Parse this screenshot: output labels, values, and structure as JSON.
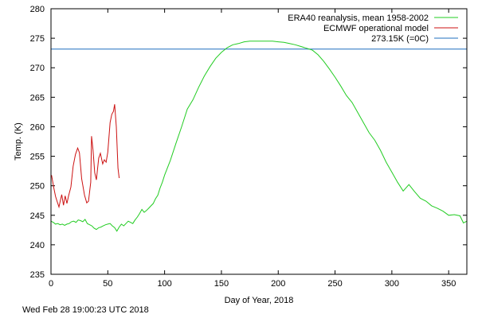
{
  "chart_data": {
    "type": "line",
    "title": "",
    "xlabel": "Day of Year, 2018",
    "ylabel": "Temp. (K)",
    "xlim": [
      0,
      366
    ],
    "ylim": [
      235,
      280
    ],
    "xticks": [
      0,
      50,
      100,
      150,
      200,
      250,
      300,
      350
    ],
    "yticks": [
      235,
      240,
      245,
      250,
      255,
      260,
      265,
      270,
      275,
      280
    ],
    "grid": false,
    "legend_position": "top-right",
    "series": [
      {
        "name": "ERA40 reanalysis, mean 1958-2002",
        "color": "#22cc22",
        "x": [
          0,
          2,
          4,
          6,
          8,
          10,
          12,
          14,
          16,
          18,
          20,
          22,
          24,
          26,
          28,
          30,
          32,
          34,
          36,
          38,
          40,
          42,
          44,
          46,
          48,
          50,
          52,
          54,
          56,
          58,
          60,
          62,
          64,
          66,
          68,
          70,
          72,
          74,
          76,
          78,
          80,
          82,
          84,
          86,
          88,
          90,
          92,
          94,
          96,
          98,
          100,
          105,
          110,
          115,
          120,
          125,
          130,
          135,
          140,
          145,
          150,
          155,
          160,
          165,
          170,
          175,
          180,
          185,
          190,
          195,
          200,
          205,
          210,
          215,
          220,
          225,
          230,
          235,
          240,
          245,
          250,
          255,
          260,
          265,
          270,
          275,
          280,
          285,
          290,
          295,
          300,
          305,
          310,
          315,
          320,
          325,
          330,
          335,
          340,
          345,
          350,
          355,
          360,
          363,
          366
        ],
        "y": [
          244.0,
          243.8,
          243.5,
          243.6,
          243.4,
          243.5,
          243.3,
          243.5,
          243.6,
          243.9,
          244.0,
          243.8,
          244.2,
          244.1,
          243.9,
          244.3,
          243.6,
          243.4,
          243.2,
          242.8,
          242.6,
          242.9,
          243.0,
          243.2,
          243.4,
          243.5,
          243.6,
          243.2,
          242.9,
          242.3,
          243.0,
          243.5,
          243.2,
          243.6,
          244.0,
          243.8,
          243.6,
          244.2,
          244.7,
          245.3,
          246.0,
          245.5,
          245.8,
          246.2,
          246.6,
          247.0,
          247.8,
          248.4,
          249.6,
          250.6,
          251.8,
          254.3,
          257.2,
          260.0,
          263.0,
          264.6,
          266.7,
          268.6,
          270.2,
          271.6,
          272.6,
          273.4,
          273.9,
          274.1,
          274.4,
          274.5,
          274.5,
          274.5,
          274.5,
          274.5,
          274.4,
          274.3,
          274.1,
          273.9,
          273.6,
          273.3,
          273.0,
          272.2,
          271.1,
          269.8,
          268.4,
          266.9,
          265.3,
          264.1,
          262.4,
          260.7,
          259.0,
          257.7,
          256.0,
          254.0,
          252.3,
          250.6,
          249.1,
          250.2,
          249.0,
          247.9,
          247.4,
          246.6,
          246.2,
          245.7,
          245.0,
          245.1,
          244.9,
          243.7,
          244.0
        ]
      },
      {
        "name": "ECMWF operational model",
        "color": "#cc1111",
        "x": [
          0.5,
          2.5,
          4,
          5.5,
          7,
          8.5,
          9.5,
          11,
          12.5,
          14,
          15.5,
          17.5,
          19.5,
          21.5,
          23.5,
          25,
          27,
          29.5,
          31.5,
          33,
          35,
          35.7,
          37,
          38.5,
          40,
          42,
          43.5,
          45.5,
          47,
          48.5,
          50,
          52,
          53.5,
          55,
          56,
          57.5,
          59,
          60
        ],
        "y": [
          251.8,
          249.6,
          248.2,
          247.3,
          246.4,
          247.7,
          248.5,
          246.7,
          248.3,
          247.0,
          248.3,
          249.8,
          253.3,
          255.3,
          256.4,
          255.6,
          251.2,
          248.4,
          247.1,
          247.4,
          250.6,
          258.4,
          256.0,
          252.2,
          251.0,
          254.7,
          255.5,
          253.7,
          254.4,
          254.0,
          255.7,
          260.7,
          262.1,
          262.6,
          263.8,
          260.0,
          253.0,
          251.3
        ]
      },
      {
        "name": "273.15K (=0C)",
        "color": "#1f6fbf",
        "x": [
          0,
          366
        ],
        "y": [
          273.15,
          273.15
        ]
      }
    ]
  },
  "footer": {
    "timestamp": "Wed Feb 28 19:00:23 UTC 2018"
  }
}
